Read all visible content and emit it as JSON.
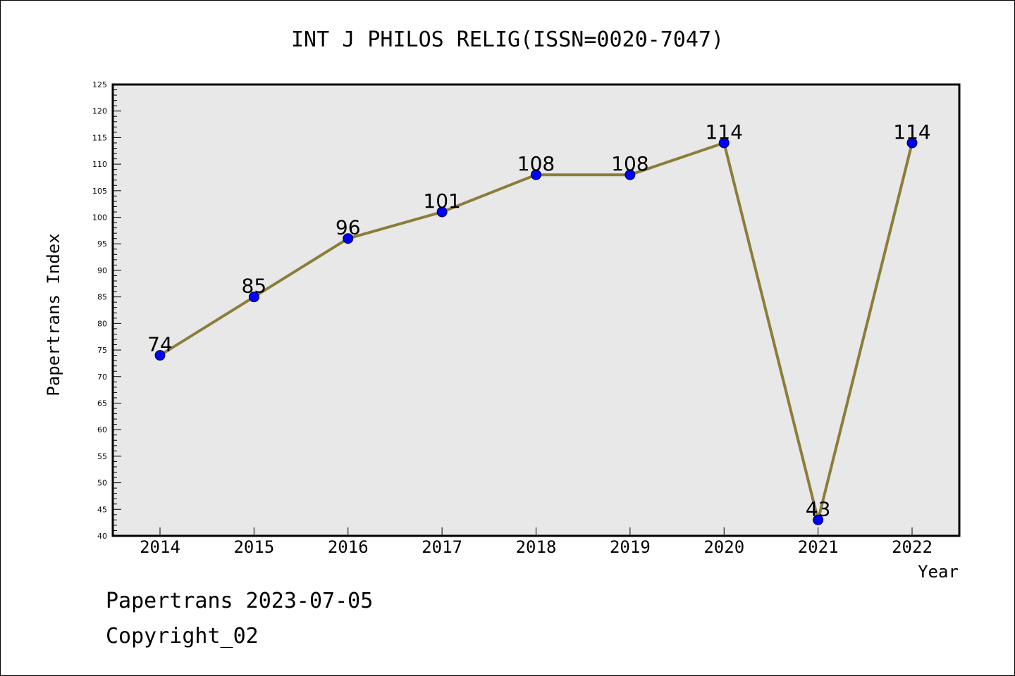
{
  "chart_data": {
    "type": "line",
    "title": "INT J PHILOS RELIG(ISSN=0020-7047)",
    "xlabel": "Year",
    "ylabel": "Papertrans Index",
    "x": [
      "2014",
      "2015",
      "2016",
      "2017",
      "2018",
      "2019",
      "2020",
      "2021",
      "2022"
    ],
    "series": [
      {
        "values": [
          74,
          85,
          96,
          101,
          108,
          108,
          114,
          43,
          114
        ]
      }
    ],
    "data_labels": [
      "74",
      "85",
      "96",
      "101",
      "108",
      "108",
      "114",
      "43",
      "114"
    ],
    "ylim": [
      40,
      125
    ],
    "y_major_step": 5,
    "y_minor_step": 1,
    "y_tick_labels": [
      "40",
      "45",
      "50",
      "55",
      "60",
      "65",
      "70",
      "75",
      "80",
      "85",
      "90",
      "95",
      "100",
      "105",
      "110",
      "115",
      "120",
      "125"
    ],
    "grid": false,
    "legend": "none",
    "colors": {
      "line": "#8c7d3a",
      "marker": "#0000ff",
      "plot_background": "#e8e8e8",
      "axes": "#000000"
    }
  },
  "footer": {
    "line1": "Papertrans 2023-07-05",
    "line2": "Copyright_02"
  }
}
